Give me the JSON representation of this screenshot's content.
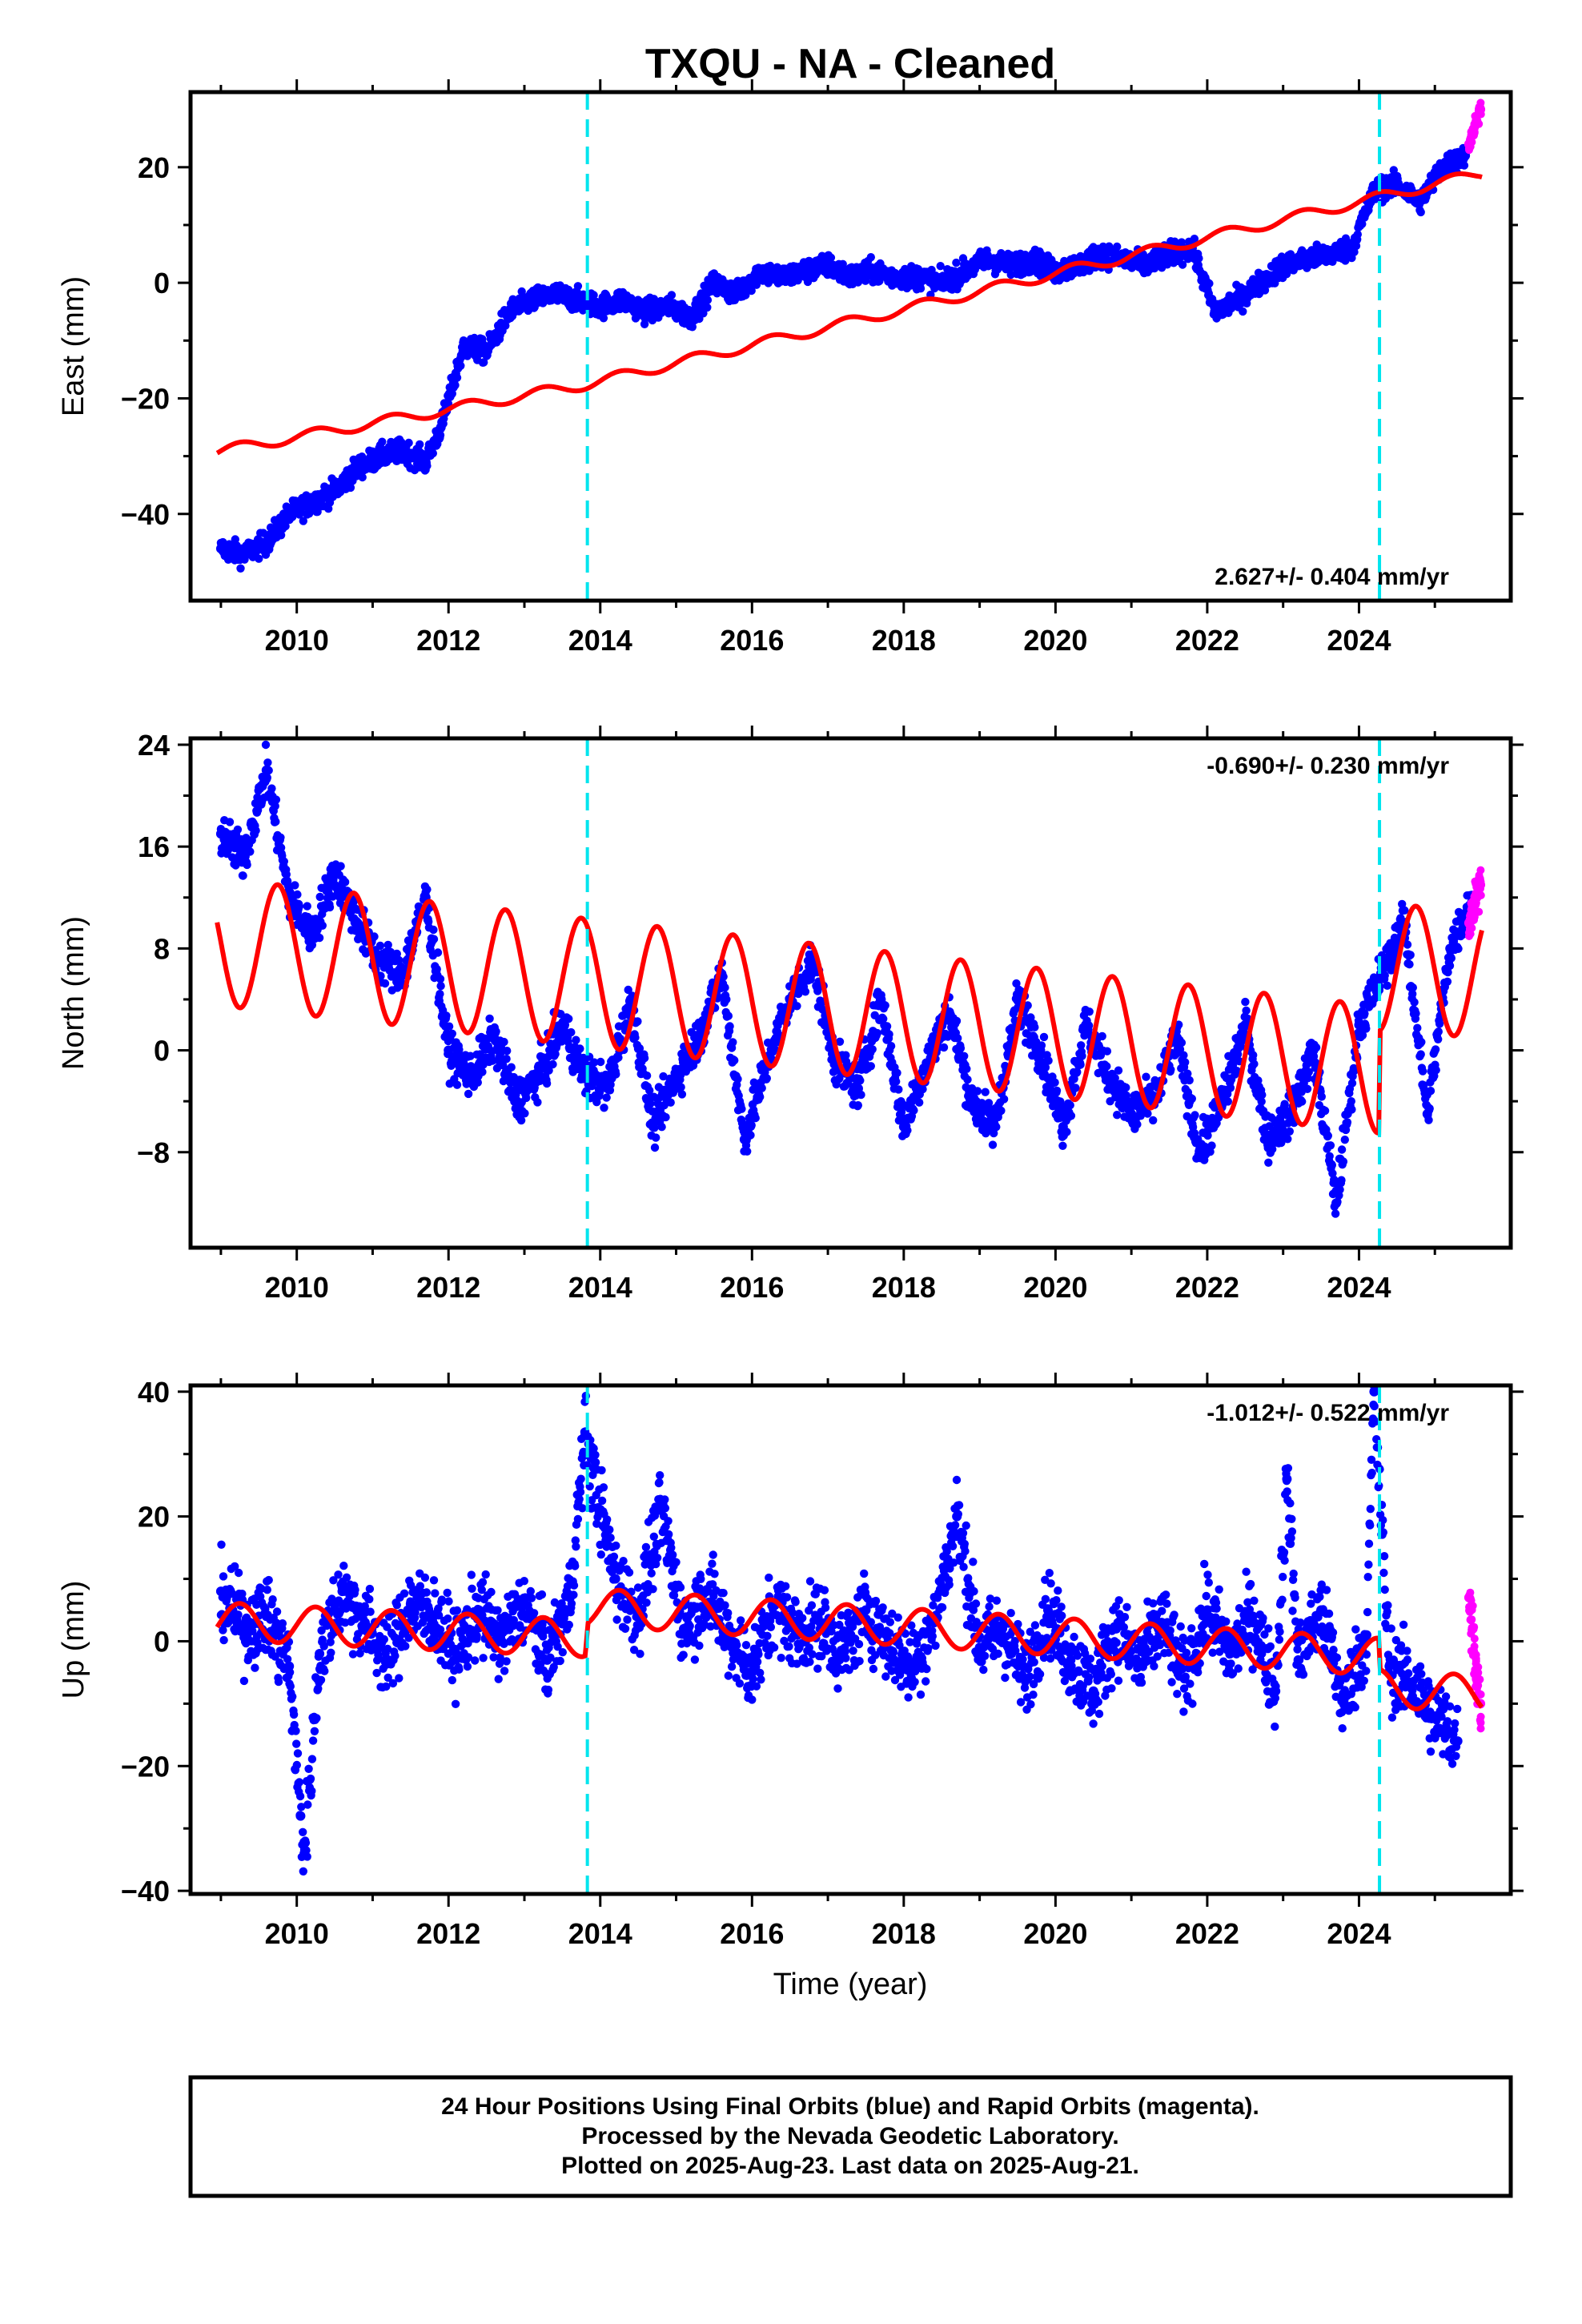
{
  "title": "TXQU  - NA - Cleaned",
  "colors": {
    "final_orbits": "#0000ff",
    "rapid_orbits": "#ff00ff",
    "model": "#ff0000",
    "equipment_change": "#00e5ee",
    "frame": "#000000"
  },
  "xlabel": "Time (year)",
  "footer": [
    "24 Hour Positions Using Final Orbits (blue) and Rapid Orbits (magenta).",
    "Processed by the Nevada Geodetic Laboratory.",
    "Plotted on 2025-Aug-23. Last data on 2025-Aug-21."
  ],
  "chart_data": [
    {
      "type": "scatter",
      "component": "East",
      "ylabel": "East (mm)",
      "xlim": [
        2008.6,
        2026.0
      ],
      "ylim": [
        -55,
        33
      ],
      "xticks": [
        2010,
        2012,
        2014,
        2016,
        2018,
        2020,
        2022,
        2024
      ],
      "yticks": [
        -40,
        -20,
        0,
        20
      ],
      "rate_label": "2.627+/- 0.404 mm/yr",
      "rate_position": "bottom-right",
      "equipment_changes": [
        2013.83,
        2024.27
      ],
      "series": [
        {
          "name": "final",
          "x": [
            2009.0,
            2009.3,
            2009.6,
            2009.9,
            2010.2,
            2010.5,
            2010.8,
            2011.1,
            2011.4,
            2011.7,
            2011.9,
            2012.2,
            2012.5,
            2012.8,
            2013.1,
            2013.4,
            2013.7,
            2014.0,
            2014.3,
            2014.6,
            2014.9,
            2015.2,
            2015.5,
            2015.8,
            2016.1,
            2016.4,
            2016.7,
            2017.0,
            2017.3,
            2017.6,
            2017.9,
            2018.2,
            2018.5,
            2018.8,
            2019.1,
            2019.4,
            2019.7,
            2020.0,
            2020.3,
            2020.6,
            2020.9,
            2021.2,
            2021.5,
            2021.8,
            2022.1,
            2022.4,
            2022.7,
            2023.0,
            2023.3,
            2023.6,
            2023.9,
            2024.2,
            2024.5,
            2024.8,
            2025.1,
            2025.4
          ],
          "y": [
            -46,
            -47,
            -45,
            -40,
            -38,
            -36,
            -32,
            -30,
            -29,
            -31,
            -25,
            -11,
            -12,
            -5,
            -3,
            -2,
            -3,
            -4,
            -3,
            -5,
            -4,
            -6,
            0,
            -2,
            2,
            1,
            2,
            3,
            1,
            2,
            1,
            1,
            0,
            2,
            4,
            3,
            4,
            2,
            3,
            5,
            4,
            3,
            5,
            6,
            -5,
            -3,
            0,
            3,
            4,
            5,
            6,
            16,
            17,
            14,
            20,
            22
          ]
        },
        {
          "name": "rapid",
          "x": [
            2025.45,
            2025.5,
            2025.55,
            2025.6
          ],
          "y": [
            24,
            26,
            28,
            30
          ]
        }
      ],
      "model": {
        "trend": [
          [
            2009.0,
            -29
          ],
          [
            2013.8,
            -17.6
          ],
          [
            2013.84,
            -12.5
          ],
          [
            2025.6,
            18.5
          ]
        ],
        "amp": 1.0,
        "phase": 0.5,
        "anchors": [
          [
            2008.95,
            -29.2
          ],
          [
            2013.8,
            -17.6
          ],
          [
            2024.0,
            14.0
          ],
          [
            2025.6,
            18.9
          ]
        ]
      }
    },
    {
      "type": "scatter",
      "component": "North",
      "ylabel": "North (mm)",
      "xlim": [
        2008.6,
        2026.0
      ],
      "ylim": [
        -15.5,
        24.5
      ],
      "xticks": [
        2010,
        2012,
        2014,
        2016,
        2018,
        2020,
        2022,
        2024
      ],
      "yticks": [
        -8,
        0,
        8,
        16,
        24
      ],
      "rate_label": "-0.690+/- 0.230 mm/yr",
      "rate_position": "top-right",
      "equipment_changes": [
        2013.83,
        2024.27
      ],
      "series": [
        {
          "name": "final",
          "x": [
            2009.0,
            2009.3,
            2009.6,
            2009.9,
            2010.2,
            2010.5,
            2010.8,
            2011.1,
            2011.4,
            2011.7,
            2012.0,
            2012.3,
            2012.6,
            2012.9,
            2013.2,
            2013.5,
            2013.8,
            2014.1,
            2014.4,
            2014.7,
            2015.0,
            2015.3,
            2015.6,
            2015.9,
            2016.2,
            2016.5,
            2016.8,
            2017.1,
            2017.4,
            2017.7,
            2018.0,
            2018.3,
            2018.6,
            2018.9,
            2019.2,
            2019.5,
            2019.8,
            2020.1,
            2020.4,
            2020.7,
            2021.0,
            2021.3,
            2021.6,
            2021.9,
            2022.2,
            2022.5,
            2022.8,
            2023.1,
            2023.4,
            2023.7,
            2024.0,
            2024.3,
            2024.6,
            2024.9,
            2025.2,
            2025.5
          ],
          "y": [
            17,
            15,
            22,
            12,
            9,
            14,
            10,
            7,
            6,
            12,
            0,
            -2,
            1,
            -4,
            -2,
            2,
            -2,
            -3,
            4,
            -6,
            -2,
            1,
            6,
            -7,
            -1,
            4,
            7,
            -1,
            -3,
            4,
            -6,
            -1,
            3,
            -4,
            -6,
            4,
            0,
            -6,
            2,
            -2,
            -5,
            -4,
            1,
            -8,
            -4,
            2,
            -7,
            -5,
            0,
            -12,
            2,
            6,
            10,
            -5,
            8,
            12
          ]
        },
        {
          "name": "rapid",
          "x": [
            2025.45,
            2025.5,
            2025.55,
            2025.6
          ],
          "y": [
            10,
            11,
            12,
            13
          ]
        }
      ],
      "model": {
        "trend": [
          [
            2009.0,
            8.5
          ],
          [
            2024.26,
            -1.5
          ],
          [
            2024.28,
            6.5
          ],
          [
            2025.6,
            6.0
          ]
        ],
        "amp": 5.0,
        "phase": 0.5,
        "anchors": [
          [
            2008.95,
            5.5
          ],
          [
            2009.45,
            13.2
          ],
          [
            2010.0,
            3.5
          ],
          [
            2010.45,
            12.4
          ],
          [
            2011.5,
            11.6
          ],
          [
            2013.5,
            10.3
          ],
          [
            2014.0,
            -1.5
          ],
          [
            2014.45,
            7.8
          ],
          [
            2016.5,
            6.0
          ],
          [
            2019.5,
            4.3
          ],
          [
            2022.0,
            -6.8
          ],
          [
            2023.0,
            -8.0
          ],
          [
            2023.8,
            -8.5
          ],
          [
            2024.25,
            -6.1
          ],
          [
            2024.55,
            10.3
          ],
          [
            2025.45,
            10.0
          ],
          [
            2025.6,
            6.0
          ]
        ]
      }
    },
    {
      "type": "scatter",
      "component": "Up",
      "ylabel": "Up (mm)",
      "xlim": [
        2008.6,
        2026.0
      ],
      "ylim": [
        -40.5,
        41
      ],
      "xticks": [
        2010,
        2012,
        2014,
        2016,
        2018,
        2020,
        2022,
        2024
      ],
      "yticks": [
        -40,
        -20,
        0,
        20,
        40
      ],
      "rate_label": "-1.012+/- 0.522 mm/yr",
      "rate_position": "top-right",
      "equipment_changes": [
        2013.83,
        2024.27
      ],
      "series": [
        {
          "name": "final",
          "x": [
            2009.0,
            2009.3,
            2009.6,
            2009.9,
            2010.05,
            2010.1,
            2010.3,
            2010.6,
            2010.9,
            2011.2,
            2011.5,
            2011.8,
            2012.1,
            2012.4,
            2012.7,
            2013.0,
            2013.3,
            2013.6,
            2013.8,
            2013.85,
            2014.2,
            2014.5,
            2014.8,
            2015.1,
            2015.4,
            2015.7,
            2016.0,
            2016.3,
            2016.6,
            2016.9,
            2017.2,
            2017.5,
            2017.8,
            2018.1,
            2018.4,
            2018.7,
            2019.0,
            2019.3,
            2019.6,
            2019.9,
            2020.2,
            2020.5,
            2020.8,
            2021.1,
            2021.4,
            2021.7,
            2022.0,
            2022.3,
            2022.6,
            2022.9,
            2023.05,
            2023.2,
            2023.5,
            2023.8,
            2024.1,
            2024.2,
            2024.4,
            2024.7,
            2025.0,
            2025.3
          ],
          "y": [
            8,
            2,
            4,
            -4,
            -28,
            -34,
            -2,
            8,
            3,
            -3,
            6,
            4,
            -2,
            5,
            0,
            6,
            -3,
            7,
            33,
            30,
            10,
            4,
            21,
            2,
            8,
            1,
            -5,
            6,
            1,
            3,
            -2,
            5,
            0,
            -4,
            3,
            20,
            -1,
            2,
            -6,
            5,
            -3,
            -8,
            2,
            -4,
            3,
            -6,
            5,
            -2,
            4,
            -8,
            26,
            -3,
            5,
            -10,
            1,
            40,
            -4,
            -7,
            -12,
            -16
          ]
        },
        {
          "name": "rapid",
          "x": [
            2025.45,
            2025.5,
            2025.55,
            2025.6
          ],
          "y": [
            7,
            2,
            -6,
            -10
          ]
        }
      ],
      "model": {
        "trend": [
          [
            2009.0,
            3.2
          ],
          [
            2013.8,
            0.5
          ],
          [
            2013.84,
            5.5
          ],
          [
            2024.26,
            -2.5
          ],
          [
            2024.28,
            -7.5
          ],
          [
            2025.6,
            -8.5
          ]
        ],
        "amp": 3.0,
        "phase": 0.0,
        "anchors": [
          [
            2008.95,
            6.0
          ],
          [
            2009.9,
            6.5
          ],
          [
            2010.8,
            5.0
          ],
          [
            2013.8,
            0.0
          ],
          [
            2013.85,
            8.0
          ],
          [
            2014.8,
            7.0
          ],
          [
            2016.8,
            5.5
          ],
          [
            2018.8,
            3.0
          ],
          [
            2020.8,
            1.5
          ],
          [
            2022.8,
            -1.0
          ],
          [
            2024.2,
            -3.0
          ],
          [
            2024.3,
            -10.0
          ],
          [
            2025.5,
            -10.5
          ],
          [
            2025.6,
            -8.0
          ]
        ]
      }
    }
  ]
}
